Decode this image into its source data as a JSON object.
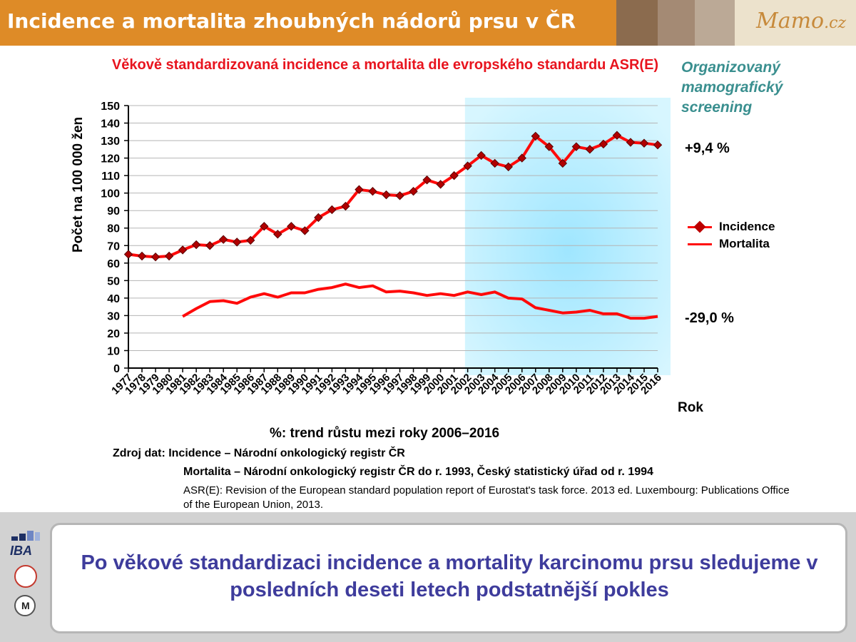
{
  "header": {
    "title": "Incidence a mortalita zhoubných nádorů prsu v ČR",
    "logo_main": "Mamo",
    "logo_suffix": ".cz"
  },
  "chart_data": {
    "type": "line",
    "title": "Věkově standardizovaná incidence a mortalita dle evropského standardu ASR(E)",
    "ylabel": "Počet  na 100 000 žen",
    "xlabel": "Rok",
    "ylim": [
      0,
      150
    ],
    "y_ticks": [
      0,
      10,
      20,
      30,
      40,
      50,
      60,
      70,
      80,
      90,
      100,
      110,
      120,
      130,
      140,
      150
    ],
    "grid": true,
    "legend_position": "right",
    "x": [
      "1977",
      "1978",
      "1979",
      "1980",
      "1981",
      "1982",
      "1983",
      "1984",
      "1985",
      "1986",
      "1987",
      "1988",
      "1989",
      "1990",
      "1991",
      "1992",
      "1993",
      "1994",
      "1995",
      "1996",
      "1997",
      "1998",
      "1999",
      "2000",
      "2001",
      "2002",
      "2003",
      "2004",
      "2005",
      "2006",
      "2007",
      "2008",
      "2009",
      "2010",
      "2011",
      "2012",
      "2013",
      "2014",
      "2015",
      "2016"
    ],
    "series": [
      {
        "name": "Incidence",
        "color": "#ff0a0a",
        "marker": "diamond",
        "values": [
          65,
          64,
          63.5,
          64,
          67.5,
          70.5,
          70,
          73.5,
          72,
          73,
          81,
          76.5,
          81,
          78.5,
          86,
          90.5,
          92.5,
          102,
          101,
          99,
          98.5,
          101,
          107.5,
          105,
          110,
          115.5,
          121.5,
          117,
          115,
          120,
          132.5,
          126.5,
          117,
          126.5,
          125,
          128,
          133,
          129,
          128.5,
          127.5
        ]
      },
      {
        "name": "Mortalita",
        "color": "#ff0a0a",
        "marker": "none",
        "values": [
          null,
          null,
          null,
          null,
          29.5,
          34,
          38,
          38.5,
          37,
          40.5,
          42.5,
          40.5,
          43,
          43,
          45,
          46,
          48,
          46,
          47,
          43.5,
          44,
          43,
          41.5,
          42.5,
          41.5,
          43.5,
          42,
          43.5,
          40,
          39.5,
          34.5,
          33,
          31.5,
          32,
          33,
          31,
          31,
          28.5,
          28.5,
          29.5
        ]
      }
    ],
    "highlight": {
      "label": "Organizovaný mamografický screening",
      "from": "2002",
      "color": "#9fe6ff"
    },
    "annotations": {
      "incidence_trend": "+9,4 %",
      "mortality_trend": "-29,0 %",
      "trend_note": "%: trend růstu mezi roky 2006–2016"
    }
  },
  "sources": {
    "line1": "Zdroj dat: Incidence – Národní onkologický registr ČR",
    "line2": "Mortalita – Národní onkologický registr ČR do r. 1993, Český statistický úřad od r. 1994",
    "line3": "ASR(E): Revision of the European standard population report of Eurostat's task force. 2013 ed. Luxembourg: Publications Office of the European Union, 2013."
  },
  "message": "Po věkové standardizaci incidence a mortality karcinomu prsu sledujeme v posledních deseti letech podstatnější pokles",
  "logos": {
    "iba": "IBA"
  }
}
